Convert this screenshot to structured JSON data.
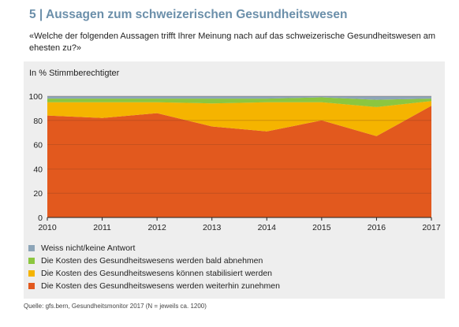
{
  "header": {
    "title": "5 | Aussagen zum schweizerischen Gesundheitswesen",
    "subtitle": "«Welche der folgenden Aussagen trifft Ihrer Meinung nach auf das schweizerische Gesundheitswesen am ehesten zu?»",
    "unit_label": "In % Stimmberechtigter"
  },
  "source": "Quelle: gfs.bern, Gesundheitsmonitor 2017 (N = jeweils ca. 1200)",
  "colors": {
    "panel_bg": "#eeeeee",
    "weiss_nicht": "#8da5b8",
    "abnehmen": "#8cc63f",
    "stabilisiert": "#f5b400",
    "zunehmen": "#e2591e",
    "title": "#6b8faa"
  },
  "chart_data": {
    "type": "area",
    "stacked": true,
    "x": [
      "2010",
      "2011",
      "2012",
      "2013",
      "2014",
      "2015",
      "2016",
      "2017"
    ],
    "ylim": [
      0,
      100
    ],
    "yticks": [
      0,
      20,
      40,
      60,
      80,
      100
    ],
    "grid": true,
    "legend_position": "bottom",
    "series": [
      {
        "name": "Die Kosten des Gesundheitswesens werden weiterhin zunehmen",
        "color": "#e2591e",
        "values": [
          84,
          82,
          86,
          75,
          71,
          80,
          67,
          92
        ]
      },
      {
        "name": "Die Kosten des Gesundheitswesens können stabilisiert werden",
        "color": "#f5b400",
        "values": [
          11,
          13,
          9,
          19,
          24,
          15,
          24,
          4
        ]
      },
      {
        "name": "Die Kosten des Gesundheitswesens werden bald abnehmen",
        "color": "#8cc63f",
        "values": [
          3,
          3,
          3,
          4,
          3,
          4,
          6,
          2
        ]
      },
      {
        "name": "Weiss nicht/keine Antwort",
        "color": "#8da5b8",
        "values": [
          2,
          2,
          2,
          2,
          2,
          1,
          3,
          2
        ]
      }
    ],
    "legend_order": [
      3,
      2,
      1,
      0
    ]
  }
}
